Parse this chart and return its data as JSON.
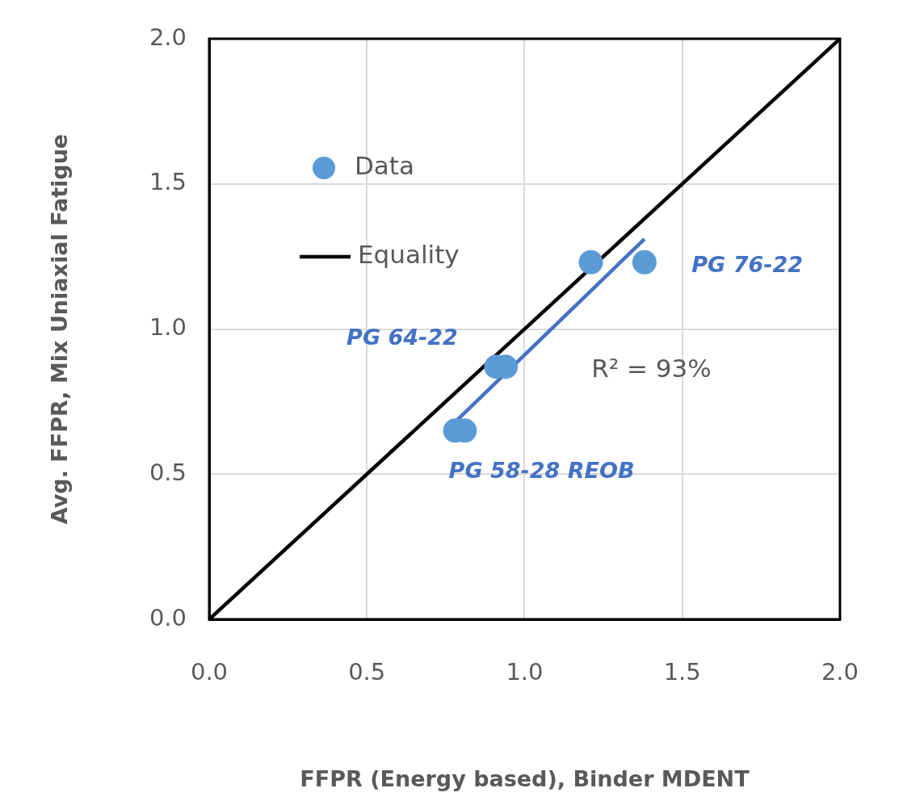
{
  "chart_data": {
    "type": "scatter",
    "xlabel": "FFPR (Energy based), Binder MDENT",
    "ylabel": "Avg. FFPR, Mix Uniaxial Fatigue",
    "xlim": [
      0,
      2
    ],
    "ylim": [
      0,
      2
    ],
    "xticks": [
      {
        "value": 0,
        "label": "0.0"
      },
      {
        "value": 0.5,
        "label": "0.5"
      },
      {
        "value": 1,
        "label": "1.0"
      },
      {
        "value": 1.5,
        "label": "1.5"
      },
      {
        "value": 2,
        "label": "2.0"
      }
    ],
    "yticks": [
      {
        "value": 0,
        "label": "0.0"
      },
      {
        "value": 0.5,
        "label": "0.5"
      },
      {
        "value": 1,
        "label": "1.0"
      },
      {
        "value": 1.5,
        "label": "1.5"
      },
      {
        "value": 2,
        "label": "2.0"
      }
    ],
    "grid": true,
    "legend": "top left",
    "series": [
      {
        "name": "Data",
        "type": "scatter",
        "color": "#5b9bd5",
        "marker": "circle",
        "x": [
          1.21,
          1.38,
          0.91,
          0.94,
          0.78,
          0.81
        ],
        "values": [
          1.23,
          1.23,
          0.87,
          0.87,
          0.65,
          0.65
        ]
      },
      {
        "name": "Equality",
        "type": "line",
        "color": "#000000",
        "marker": "none",
        "x": [
          0,
          2
        ],
        "values": [
          0,
          2
        ]
      },
      {
        "type": "line",
        "color": "#4472c4",
        "marker": "none",
        "x": [
          0.78,
          1.38
        ],
        "values": [
          0.68,
          1.31
        ]
      }
    ],
    "annotations": [
      "PG 76-22",
      "PG 64-22",
      "PG 58-28 REOB",
      "R² = 93%"
    ]
  }
}
